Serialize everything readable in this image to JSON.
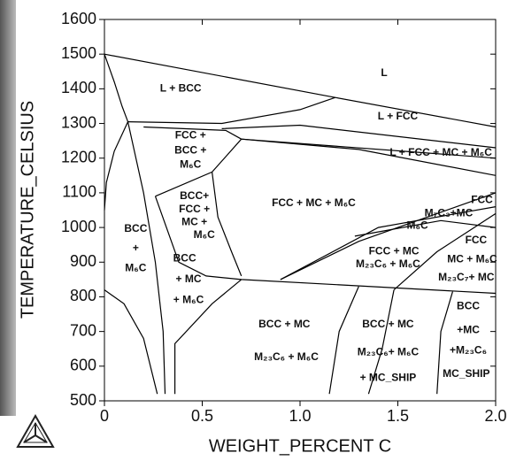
{
  "chart_data": {
    "type": "line",
    "x_label": "WEIGHT_PERCENT C",
    "y_label": "TEMPERATURE_CELSIUS",
    "xlim": [
      0,
      2.0
    ],
    "ylim": [
      500,
      1600
    ],
    "xticks": [
      0,
      0.5,
      {
        "value": 1.0,
        "label": "1.0"
      },
      1.5,
      {
        "value": 2.0,
        "label": "2.0"
      }
    ],
    "yticks": [
      500,
      600,
      700,
      800,
      900,
      1000,
      1100,
      1200,
      1300,
      1400,
      1500,
      1600
    ],
    "color": "#000000",
    "series": [
      {
        "x": [
          0,
          1.18,
          2.0
        ],
        "values": [
          1500,
          1375,
          1290
        ]
      },
      {
        "x": [
          0,
          0.05,
          0.09,
          0.12
        ],
        "values": [
          1500,
          1420,
          1350,
          1305
        ]
      },
      {
        "x": [
          0.12,
          0.6,
          1.0,
          1.18
        ],
        "values": [
          1305,
          1300,
          1340,
          1375
        ]
      },
      {
        "x": [
          0.6,
          1.0,
          2.0
        ],
        "values": [
          1285,
          1295,
          1230
        ]
      },
      {
        "x": [
          0.7,
          2.0
        ],
        "values": [
          1255,
          1200
        ]
      },
      {
        "x": [
          0.7,
          1.3,
          2.0
        ],
        "values": [
          1255,
          1225,
          1150
        ]
      },
      {
        "x": [
          0.12,
          0.05,
          0.01,
          0
        ],
        "values": [
          1305,
          1220,
          1130,
          1050
        ]
      },
      {
        "x": [
          0.12,
          0.2,
          0.26,
          0.3,
          0.31
        ],
        "values": [
          1305,
          1100,
          900,
          700,
          520
        ]
      },
      {
        "x": [
          0,
          0.1,
          0.2,
          0.27
        ],
        "values": [
          820,
          780,
          680,
          520
        ]
      },
      {
        "x": [
          0.2,
          0.62,
          0.7
        ],
        "values": [
          1290,
          1280,
          1255
        ]
      },
      {
        "x": [
          0.26,
          0.55,
          0.7
        ],
        "values": [
          1090,
          1160,
          1255
        ]
      },
      {
        "x": [
          0.26,
          0.38,
          0.52,
          0.7,
          2.0
        ],
        "values": [
          1090,
          900,
          860,
          850,
          810
        ]
      },
      {
        "x": [
          0.36,
          0.36,
          0.55,
          0.7
        ],
        "values": [
          520,
          665,
          780,
          850
        ]
      },
      {
        "x": [
          0.55,
          0.58,
          0.65,
          0.7
        ],
        "values": [
          1160,
          1030,
          930,
          860
        ]
      },
      {
        "x": [
          0.9,
          1.3,
          1.7,
          2.0
        ],
        "values": [
          850,
          960,
          1040,
          1100
        ]
      },
      {
        "x": [
          0.9,
          1.4,
          2.0
        ],
        "values": [
          850,
          1000,
          1060
        ]
      },
      {
        "x": [
          1.28,
          1.72,
          2.0
        ],
        "values": [
          975,
          1020,
          1000
        ]
      },
      {
        "x": [
          1.48,
          1.42,
          1.35
        ],
        "values": [
          820,
          650,
          520
        ]
      },
      {
        "x": [
          1.78,
          1.72,
          1.7
        ],
        "values": [
          815,
          700,
          520
        ]
      },
      {
        "x": [
          1.3,
          1.2,
          1.15
        ],
        "values": [
          830,
          700,
          520
        ]
      },
      {
        "x": [
          1.48,
          1.7,
          2.0
        ],
        "values": [
          820,
          930,
          1040
        ]
      }
    ],
    "annotations": [
      {
        "text": "L",
        "x": 1.43,
        "y": 1445
      },
      {
        "text": "L + BCC",
        "x": 0.39,
        "y": 1400
      },
      {
        "text": "L + FCC",
        "x": 1.5,
        "y": 1320
      },
      {
        "text": "L + FCC + MC + M₆C",
        "x": 1.72,
        "y": 1215
      },
      {
        "text": "FCC +",
        "x": 0.44,
        "y": 1265
      },
      {
        "text": "BCC +",
        "x": 0.44,
        "y": 1222
      },
      {
        "text": "M₆C",
        "x": 0.44,
        "y": 1180
      },
      {
        "text": "BCC+",
        "x": 0.46,
        "y": 1090
      },
      {
        "text": "FCC +",
        "x": 0.46,
        "y": 1052
      },
      {
        "text": "MC +",
        "x": 0.46,
        "y": 1015
      },
      {
        "text": "M₆C",
        "x": 0.51,
        "y": 978
      },
      {
        "text": "FCC + MC + M₆C",
        "x": 1.07,
        "y": 1070
      },
      {
        "text": "FCC",
        "x": 1.93,
        "y": 1078
      },
      {
        "text": "M₇C₃+MC",
        "x": 1.76,
        "y": 1040
      },
      {
        "text": "M₆C",
        "x": 1.6,
        "y": 1005
      },
      {
        "text": "BCC",
        "x": 0.16,
        "y": 995
      },
      {
        "text": "+",
        "x": 0.16,
        "y": 940
      },
      {
        "text": "M₆C",
        "x": 0.16,
        "y": 882
      },
      {
        "text": "BCC",
        "x": 0.41,
        "y": 910
      },
      {
        "text": "+ MC",
        "x": 0.43,
        "y": 850
      },
      {
        "text": "+ M₆C",
        "x": 0.43,
        "y": 790
      },
      {
        "text": "FCC + MC",
        "x": 1.48,
        "y": 930
      },
      {
        "text": "M₂₃C₆ + M₆C",
        "x": 1.45,
        "y": 893
      },
      {
        "text": "FCC",
        "x": 1.9,
        "y": 962
      },
      {
        "text": "MC + M₆C",
        "x": 1.88,
        "y": 908
      },
      {
        "text": "M₂₃C₇+ MC",
        "x": 1.85,
        "y": 855
      },
      {
        "text": "BCC + MC",
        "x": 0.92,
        "y": 720
      },
      {
        "text": "M₂₃C₆ + M₆C",
        "x": 0.93,
        "y": 625
      },
      {
        "text": "BCC + MC",
        "x": 1.45,
        "y": 720
      },
      {
        "text": "M₂₃C₆+ M₆C",
        "x": 1.45,
        "y": 640
      },
      {
        "text": "+ MC_SHIP",
        "x": 1.45,
        "y": 565
      },
      {
        "text": "BCC",
        "x": 1.86,
        "y": 772
      },
      {
        "text": "+MC",
        "x": 1.86,
        "y": 703
      },
      {
        "text": "+M₂₃C₆",
        "x": 1.86,
        "y": 645
      },
      {
        "text": "MC_SHIP",
        "x": 1.85,
        "y": 577
      }
    ]
  }
}
